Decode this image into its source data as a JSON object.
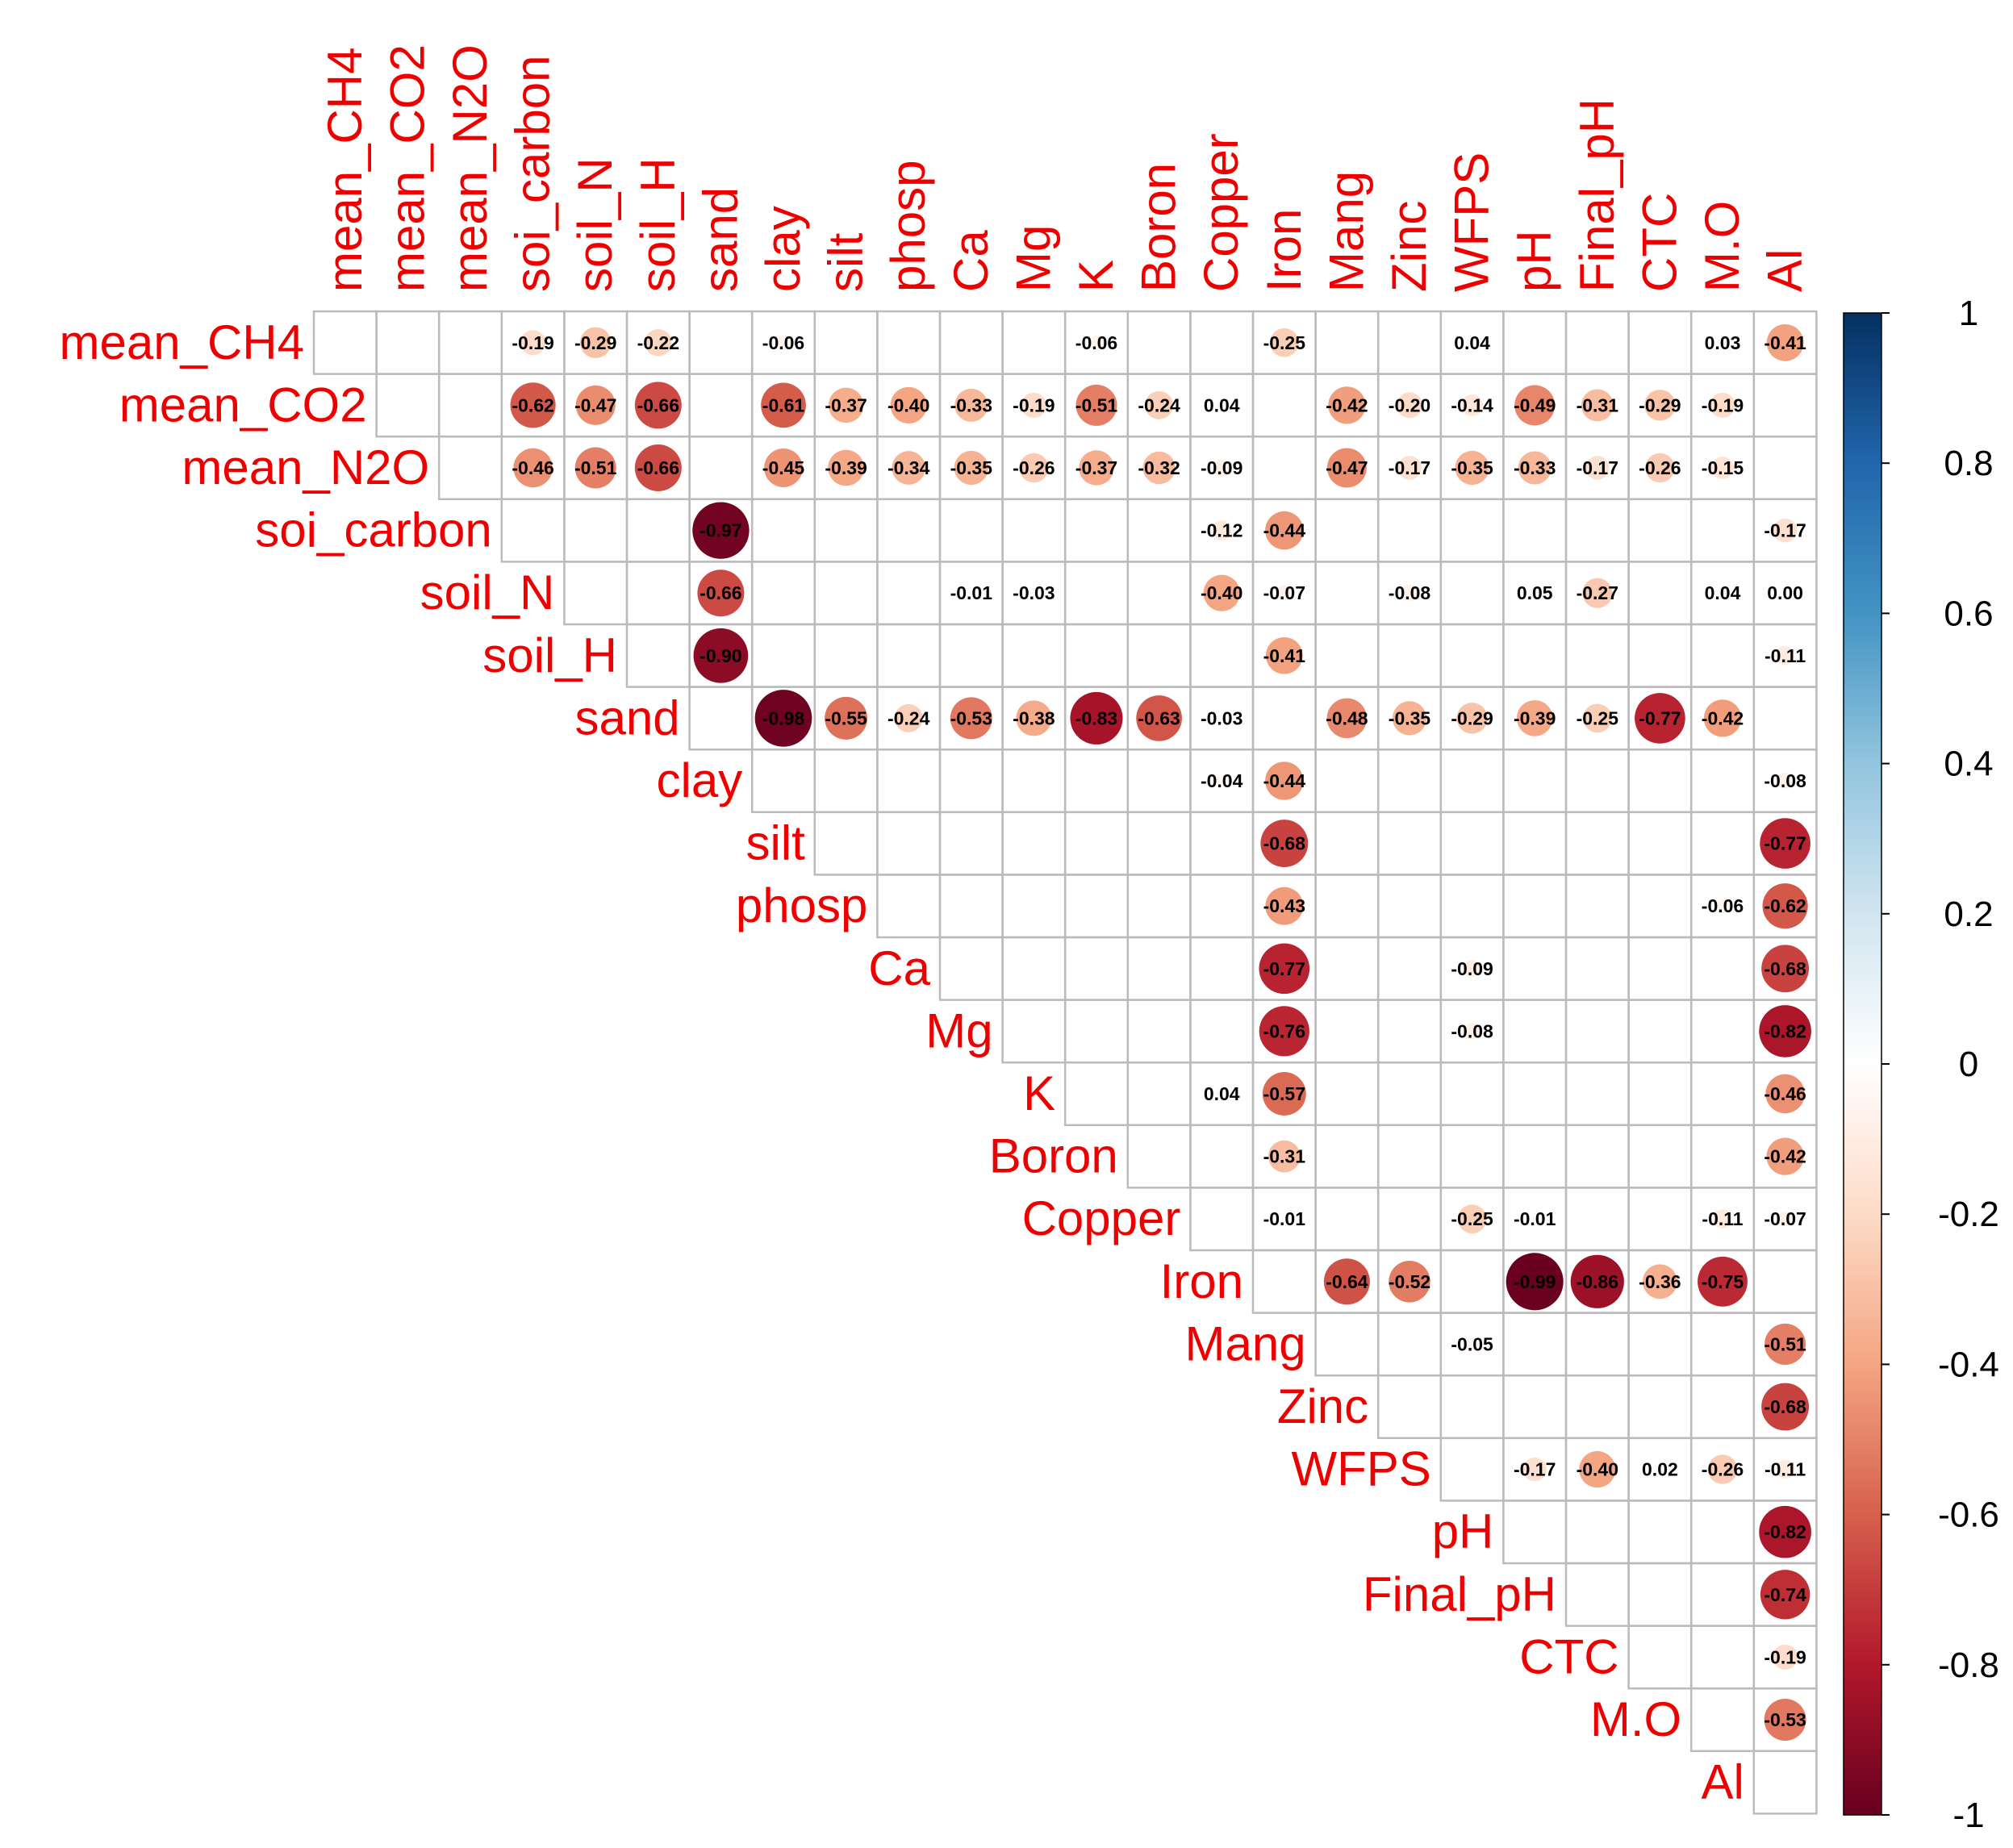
{
  "chart_data": {
    "type": "heatmap",
    "subtype": "correlation-upper-triangle",
    "variables": [
      "mean_CH4",
      "mean_CO2",
      "mean_N2O",
      "soi_carbon",
      "soil_N",
      "soil_H",
      "sand",
      "clay",
      "silt",
      "phosp",
      "Ca",
      "Mg",
      "K",
      "Boron",
      "Copper",
      "Iron",
      "Mang",
      "Zinc",
      "WFPS",
      "pH",
      "Final_pH",
      "CTC",
      "M.O",
      "Al"
    ],
    "cells": [
      {
        "row": 0,
        "col": 3,
        "value": "-0.19"
      },
      {
        "row": 0,
        "col": 4,
        "value": "-0.29"
      },
      {
        "row": 0,
        "col": 5,
        "value": "-0.22"
      },
      {
        "row": 0,
        "col": 7,
        "value": "-0.06"
      },
      {
        "row": 0,
        "col": 12,
        "value": "-0.06"
      },
      {
        "row": 0,
        "col": 15,
        "value": "-0.25"
      },
      {
        "row": 0,
        "col": 18,
        "value": "0.04"
      },
      {
        "row": 0,
        "col": 22,
        "value": "0.03"
      },
      {
        "row": 0,
        "col": 23,
        "value": "-0.41"
      },
      {
        "row": 1,
        "col": 3,
        "value": "-0.62"
      },
      {
        "row": 1,
        "col": 4,
        "value": "-0.47"
      },
      {
        "row": 1,
        "col": 5,
        "value": "-0.66"
      },
      {
        "row": 1,
        "col": 7,
        "value": "-0.61"
      },
      {
        "row": 1,
        "col": 8,
        "value": "-0.37"
      },
      {
        "row": 1,
        "col": 9,
        "value": "-0.40"
      },
      {
        "row": 1,
        "col": 10,
        "value": "-0.33"
      },
      {
        "row": 1,
        "col": 11,
        "value": "-0.19"
      },
      {
        "row": 1,
        "col": 12,
        "value": "-0.51"
      },
      {
        "row": 1,
        "col": 13,
        "value": "-0.24"
      },
      {
        "row": 1,
        "col": 14,
        "value": "0.04"
      },
      {
        "row": 1,
        "col": 16,
        "value": "-0.42"
      },
      {
        "row": 1,
        "col": 17,
        "value": "-0.20"
      },
      {
        "row": 1,
        "col": 18,
        "value": "-0.14"
      },
      {
        "row": 1,
        "col": 19,
        "value": "-0.49"
      },
      {
        "row": 1,
        "col": 20,
        "value": "-0.31"
      },
      {
        "row": 1,
        "col": 21,
        "value": "-0.29"
      },
      {
        "row": 1,
        "col": 22,
        "value": "-0.19"
      },
      {
        "row": 2,
        "col": 3,
        "value": "-0.46"
      },
      {
        "row": 2,
        "col": 4,
        "value": "-0.51"
      },
      {
        "row": 2,
        "col": 5,
        "value": "-0.66"
      },
      {
        "row": 2,
        "col": 7,
        "value": "-0.45"
      },
      {
        "row": 2,
        "col": 8,
        "value": "-0.39"
      },
      {
        "row": 2,
        "col": 9,
        "value": "-0.34"
      },
      {
        "row": 2,
        "col": 10,
        "value": "-0.35"
      },
      {
        "row": 2,
        "col": 11,
        "value": "-0.26"
      },
      {
        "row": 2,
        "col": 12,
        "value": "-0.37"
      },
      {
        "row": 2,
        "col": 13,
        "value": "-0.32"
      },
      {
        "row": 2,
        "col": 14,
        "value": "-0.09"
      },
      {
        "row": 2,
        "col": 16,
        "value": "-0.47"
      },
      {
        "row": 2,
        "col": 17,
        "value": "-0.17"
      },
      {
        "row": 2,
        "col": 18,
        "value": "-0.35"
      },
      {
        "row": 2,
        "col": 19,
        "value": "-0.33"
      },
      {
        "row": 2,
        "col": 20,
        "value": "-0.17"
      },
      {
        "row": 2,
        "col": 21,
        "value": "-0.26"
      },
      {
        "row": 2,
        "col": 22,
        "value": "-0.15"
      },
      {
        "row": 3,
        "col": 6,
        "value": "-0.97"
      },
      {
        "row": 3,
        "col": 14,
        "value": "-0.12"
      },
      {
        "row": 3,
        "col": 15,
        "value": "-0.44"
      },
      {
        "row": 3,
        "col": 23,
        "value": "-0.17"
      },
      {
        "row": 4,
        "col": 6,
        "value": "-0.66"
      },
      {
        "row": 4,
        "col": 10,
        "value": "-0.01"
      },
      {
        "row": 4,
        "col": 11,
        "value": "-0.03"
      },
      {
        "row": 4,
        "col": 14,
        "value": "-0.40"
      },
      {
        "row": 4,
        "col": 15,
        "value": "-0.07"
      },
      {
        "row": 4,
        "col": 17,
        "value": "-0.08"
      },
      {
        "row": 4,
        "col": 19,
        "value": "0.05"
      },
      {
        "row": 4,
        "col": 20,
        "value": "-0.27"
      },
      {
        "row": 4,
        "col": 22,
        "value": "0.04"
      },
      {
        "row": 4,
        "col": 23,
        "value": "0.00"
      },
      {
        "row": 5,
        "col": 6,
        "value": "-0.90"
      },
      {
        "row": 5,
        "col": 15,
        "value": "-0.41"
      },
      {
        "row": 5,
        "col": 23,
        "value": "-0.11"
      },
      {
        "row": 6,
        "col": 7,
        "value": "-0.98"
      },
      {
        "row": 6,
        "col": 8,
        "value": "-0.55"
      },
      {
        "row": 6,
        "col": 9,
        "value": "-0.24"
      },
      {
        "row": 6,
        "col": 10,
        "value": "-0.53"
      },
      {
        "row": 6,
        "col": 11,
        "value": "-0.38"
      },
      {
        "row": 6,
        "col": 12,
        "value": "-0.83"
      },
      {
        "row": 6,
        "col": 13,
        "value": "-0.63"
      },
      {
        "row": 6,
        "col": 14,
        "value": "-0.03"
      },
      {
        "row": 6,
        "col": 16,
        "value": "-0.48"
      },
      {
        "row": 6,
        "col": 17,
        "value": "-0.35"
      },
      {
        "row": 6,
        "col": 18,
        "value": "-0.29"
      },
      {
        "row": 6,
        "col": 19,
        "value": "-0.39"
      },
      {
        "row": 6,
        "col": 20,
        "value": "-0.25"
      },
      {
        "row": 6,
        "col": 21,
        "value": "-0.77"
      },
      {
        "row": 6,
        "col": 22,
        "value": "-0.42"
      },
      {
        "row": 7,
        "col": 14,
        "value": "-0.04"
      },
      {
        "row": 7,
        "col": 15,
        "value": "-0.44"
      },
      {
        "row": 7,
        "col": 23,
        "value": "-0.08"
      },
      {
        "row": 8,
        "col": 15,
        "value": "-0.68"
      },
      {
        "row": 8,
        "col": 23,
        "value": "-0.77"
      },
      {
        "row": 9,
        "col": 15,
        "value": "-0.43"
      },
      {
        "row": 9,
        "col": 22,
        "value": "-0.06"
      },
      {
        "row": 9,
        "col": 23,
        "value": "-0.62"
      },
      {
        "row": 10,
        "col": 15,
        "value": "-0.77"
      },
      {
        "row": 10,
        "col": 18,
        "value": "-0.09"
      },
      {
        "row": 10,
        "col": 23,
        "value": "-0.68"
      },
      {
        "row": 11,
        "col": 15,
        "value": "-0.76"
      },
      {
        "row": 11,
        "col": 18,
        "value": "-0.08"
      },
      {
        "row": 11,
        "col": 23,
        "value": "-0.82"
      },
      {
        "row": 12,
        "col": 14,
        "value": "0.04"
      },
      {
        "row": 12,
        "col": 15,
        "value": "-0.57"
      },
      {
        "row": 12,
        "col": 23,
        "value": "-0.46"
      },
      {
        "row": 13,
        "col": 15,
        "value": "-0.31"
      },
      {
        "row": 13,
        "col": 23,
        "value": "-0.42"
      },
      {
        "row": 14,
        "col": 15,
        "value": "-0.01"
      },
      {
        "row": 14,
        "col": 18,
        "value": "-0.25"
      },
      {
        "row": 14,
        "col": 19,
        "value": "-0.01"
      },
      {
        "row": 14,
        "col": 22,
        "value": "-0.11"
      },
      {
        "row": 14,
        "col": 23,
        "value": "-0.07"
      },
      {
        "row": 15,
        "col": 16,
        "value": "-0.64"
      },
      {
        "row": 15,
        "col": 17,
        "value": "-0.52"
      },
      {
        "row": 15,
        "col": 19,
        "value": "-0.99"
      },
      {
        "row": 15,
        "col": 20,
        "value": "-0.86"
      },
      {
        "row": 15,
        "col": 21,
        "value": "-0.36"
      },
      {
        "row": 15,
        "col": 22,
        "value": "-0.75"
      },
      {
        "row": 16,
        "col": 18,
        "value": "-0.05"
      },
      {
        "row": 16,
        "col": 23,
        "value": "-0.51"
      },
      {
        "row": 17,
        "col": 23,
        "value": "-0.68"
      },
      {
        "row": 18,
        "col": 19,
        "value": "-0.17"
      },
      {
        "row": 18,
        "col": 20,
        "value": "-0.40"
      },
      {
        "row": 18,
        "col": 21,
        "value": "0.02"
      },
      {
        "row": 18,
        "col": 22,
        "value": "-0.26"
      },
      {
        "row": 18,
        "col": 23,
        "value": "-0.11"
      },
      {
        "row": 19,
        "col": 23,
        "value": "-0.82"
      },
      {
        "row": 20,
        "col": 23,
        "value": "-0.74"
      },
      {
        "row": 21,
        "col": 23,
        "value": "-0.19"
      },
      {
        "row": 22,
        "col": 23,
        "value": "-0.53"
      }
    ],
    "colorbar": {
      "range": [
        -1,
        1
      ],
      "ticks": [
        "1",
        "0.8",
        "0.6",
        "0.4",
        "0.2",
        "0",
        "-0.2",
        "-0.4",
        "-0.6",
        "-0.8",
        "-1"
      ],
      "colors": [
        "#67001f",
        "#b2182b",
        "#d6604d",
        "#f4a582",
        "#fddbc7",
        "#ffffff",
        "#d1e5f0",
        "#92c5de",
        "#4393c3",
        "#2166ac",
        "#053061"
      ]
    },
    "label_color": "#ee0000"
  }
}
